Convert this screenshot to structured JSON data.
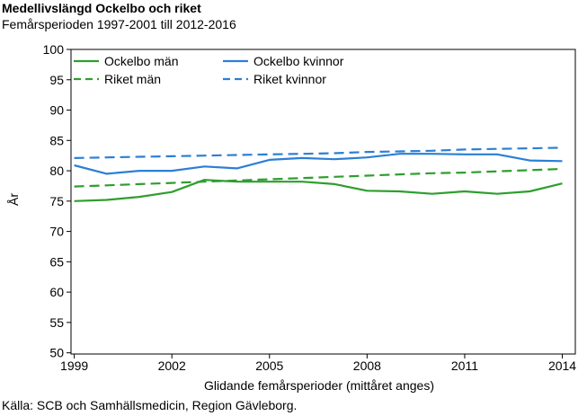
{
  "chart_data": {
    "type": "line",
    "title": "Medellivslängd Ockelbo och riket",
    "subtitle": "Femårsperioden 1997-2001 till 2012-2016",
    "xlabel": "Glidande femårsperioder (mittåret anges)",
    "ylabel": "År",
    "source": "Källa: SCB och Samhällsmedicin, Region Gävleborg.",
    "x": [
      1999,
      2000,
      2001,
      2002,
      2003,
      2004,
      2005,
      2006,
      2007,
      2008,
      2009,
      2010,
      2011,
      2012,
      2013,
      2014
    ],
    "xlim": [
      1998.9,
      2014.4
    ],
    "xticks": [
      1999,
      2002,
      2005,
      2008,
      2011,
      2014
    ],
    "ylim": [
      49.8,
      100
    ],
    "yticks": [
      50,
      55,
      60,
      65,
      70,
      75,
      80,
      85,
      90,
      95,
      100
    ],
    "grid": false,
    "legend_position": "top",
    "series": [
      {
        "name": "Ockelbo män",
        "color": "#2e9e2e",
        "dash": "solid",
        "values": [
          75.0,
          75.2,
          75.7,
          76.5,
          78.5,
          78.2,
          78.2,
          78.2,
          77.8,
          76.7,
          76.6,
          76.2,
          76.6,
          76.2,
          76.6,
          77.9
        ]
      },
      {
        "name": "Ockelbo kvinnor",
        "color": "#2b7fd6",
        "dash": "solid",
        "values": [
          80.9,
          79.5,
          80.0,
          80.0,
          80.7,
          80.4,
          81.8,
          82.1,
          81.9,
          82.2,
          82.8,
          82.8,
          82.7,
          82.7,
          81.7,
          81.6
        ]
      },
      {
        "name": "Riket män",
        "color": "#2e9e2e",
        "dash": "dashed",
        "values": [
          77.4,
          77.6,
          77.8,
          78.0,
          78.2,
          78.4,
          78.6,
          78.8,
          79.0,
          79.2,
          79.4,
          79.6,
          79.7,
          79.9,
          80.1,
          80.3
        ]
      },
      {
        "name": "Riket kvinnor",
        "color": "#2b7fd6",
        "dash": "dashed",
        "values": [
          82.1,
          82.2,
          82.3,
          82.4,
          82.5,
          82.6,
          82.7,
          82.8,
          82.9,
          83.1,
          83.2,
          83.3,
          83.5,
          83.6,
          83.7,
          83.8
        ]
      }
    ]
  }
}
